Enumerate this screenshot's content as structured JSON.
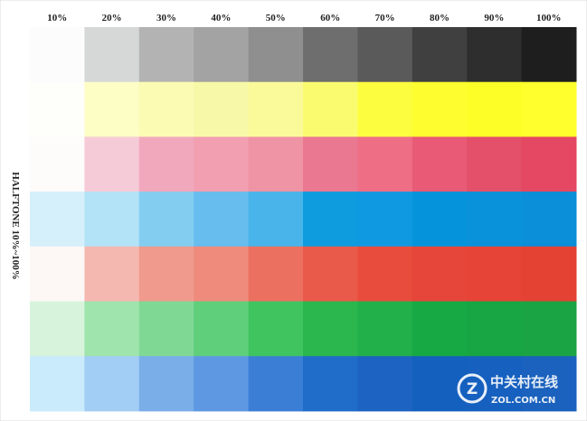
{
  "columns": [
    "10%",
    "20%",
    "30%",
    "40%",
    "50%",
    "60%",
    "70%",
    "80%",
    "90%",
    "100%"
  ],
  "side_label": "HALFTONE 10%~100%",
  "rows": [
    [
      "#fcfcfc",
      "#d6d8d8",
      "#b3b3b3",
      "#a3a3a3",
      "#8f8f8f",
      "#6e6e6e",
      "#5a5a5a",
      "#404040",
      "#2e2e2e",
      "#1e1e1e"
    ],
    [
      "#fefefa",
      "#fdfdc6",
      "#fbfbb4",
      "#f8f9a8",
      "#fbfa9a",
      "#fbfb70",
      "#fdfd40",
      "#fdfd30",
      "#fdfd28",
      "#ffff2e"
    ],
    [
      "#fefbfb",
      "#f6cbd8",
      "#f1a8bd",
      "#f19fb1",
      "#ee94a5",
      "#ea7891",
      "#ee6e85",
      "#e85a75",
      "#e4506a",
      "#e44862"
    ],
    [
      "#d5f0fa",
      "#b2e3f7",
      "#83cdf1",
      "#66bdee",
      "#48b4ea",
      "#0e9cdf",
      "#0f99e0",
      "#0594dc",
      "#0992da",
      "#0a8fd8"
    ],
    [
      "#fdf8f6",
      "#f5b8b0",
      "#ef9a8c",
      "#ee8b7d",
      "#ec7060",
      "#ea5a4a",
      "#e84c3c",
      "#e6463a",
      "#e54436",
      "#e44233"
    ],
    [
      "#d8f3dc",
      "#9fe3ad",
      "#80d895",
      "#5fcf7c",
      "#3fc460",
      "#2bb64e",
      "#22b04a",
      "#16a944",
      "#17a643",
      "#1aa443"
    ],
    [
      "#c9ebfb",
      "#a2cdf4",
      "#7aaee9",
      "#5e98e2",
      "#3a7ed6",
      "#1f6cc9",
      "#1d63c1",
      "#1460bf",
      "#1660bf",
      "#1b62be"
    ]
  ],
  "watermark": {
    "name": "中关村在线",
    "site": "ZOL.COM.CN"
  }
}
